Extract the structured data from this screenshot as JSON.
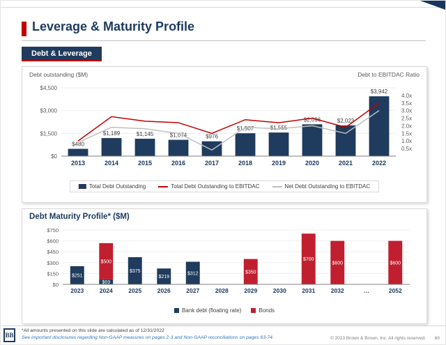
{
  "slide": {
    "title": "Leverage & Maturity Profile",
    "section1_label": "Debt & Leverage",
    "footer": {
      "footnote1": "*All amounts presented on this slide are calculated as of 12/31/2022",
      "footnote2": "See important disclosures regarding Non-GAAP measures on pages 2-3 and Non-GAAP reconciliations on pages 63-74.",
      "copyright": "© 2023 Brown & Brown, Inc. All rights reserved.",
      "page_number": "60",
      "logo_text": "BB"
    },
    "colors": {
      "navy": "#1f3b5e",
      "red": "#c00000",
      "bond_red": "#c01f2f",
      "gray_line": "#bfbfbf",
      "accent_red": "#c00000"
    }
  },
  "chart_data": [
    {
      "type": "bar",
      "title": "Debt & Leverage",
      "left_axis_label": "Debt outstanding ($M)",
      "right_axis_label": "Debt to EBITDAC Ratio",
      "categories": [
        "2013",
        "2014",
        "2015",
        "2016",
        "2017",
        "2018",
        "2019",
        "2020",
        "2021",
        "2022"
      ],
      "bars": {
        "name": "Total Debt Outstanding",
        "color": "#1f3b5e",
        "values": [
          480,
          1189,
          1145,
          1074,
          976,
          1507,
          1555,
          2096,
          2023,
          3942
        ],
        "labels": [
          "$480",
          "$1,189",
          "$1,145",
          "$1,074",
          "$976",
          "$1,507",
          "$1,555",
          "$2,096",
          "$2,023",
          "$3,942"
        ]
      },
      "lines": [
        {
          "name": "Total Debt Outstanding to EBITDAC",
          "color": "#c00000",
          "values": [
            1.0,
            2.6,
            2.3,
            2.2,
            1.5,
            2.4,
            2.2,
            2.5,
            1.9,
            3.5
          ]
        },
        {
          "name": "Net Debt Outstanding to EBITDAC",
          "color": "#bfbfbf",
          "values": [
            0.9,
            1.9,
            1.8,
            1.5,
            0.4,
            1.9,
            1.8,
            2.0,
            1.5,
            3.0
          ]
        }
      ],
      "left_axis": {
        "min": 0,
        "max": 4500,
        "ticks": [
          "$4,500",
          "$3,000",
          "$1,500",
          "$0"
        ]
      },
      "right_axis": {
        "min": 0,
        "max": 4.5,
        "ticks": [
          "4.0x",
          "3.5x",
          "3.0x",
          "2.5x",
          "2.0x",
          "1.5x",
          "1.0x",
          "0.5x"
        ],
        "tick_values": [
          4.0,
          3.5,
          3.0,
          2.5,
          2.0,
          1.5,
          1.0,
          0.5
        ]
      },
      "legend_position": "bottom"
    },
    {
      "type": "bar",
      "subtype": "stacked",
      "title": "Debt Maturity Profile* ($M)",
      "categories": [
        "2023",
        "2024",
        "2025",
        "2026",
        "2027",
        "2028",
        "2029",
        "2030",
        "2031",
        "2032",
        "…",
        "2052"
      ],
      "series": [
        {
          "name": "Bank debt (floating rate)",
          "color": "#1f3b5e",
          "values": [
            251,
            69,
            375,
            219,
            312,
            0,
            0,
            0,
            0,
            0,
            0,
            0
          ],
          "labels": [
            "$251",
            "$69",
            "$375",
            "$219",
            "$312",
            "",
            "",
            "",
            "",
            "",
            "",
            ""
          ]
        },
        {
          "name": "Bonds",
          "color": "#c01f2f",
          "values": [
            0,
            500,
            0,
            0,
            0,
            0,
            350,
            0,
            700,
            600,
            0,
            600
          ],
          "labels": [
            "",
            "$500",
            "",
            "",
            "",
            "",
            "$350",
            "",
            "$700",
            "$600",
            "",
            "$600"
          ]
        }
      ],
      "y_axis": {
        "min": 0,
        "max": 750,
        "ticks": [
          "$750",
          "$600",
          "$450",
          "$300",
          "$150",
          "$0"
        ]
      },
      "legend_position": "bottom"
    }
  ]
}
